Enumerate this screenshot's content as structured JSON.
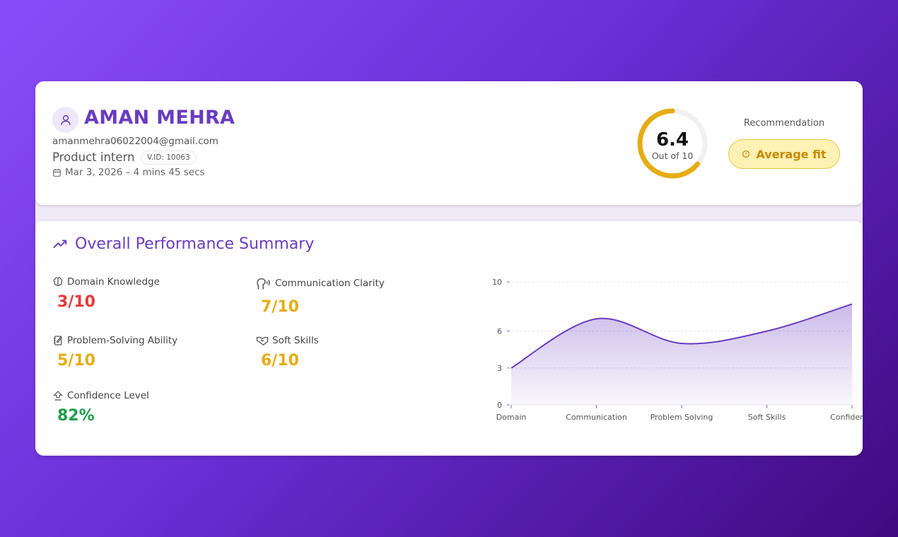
{
  "candidate": {
    "name": "AMAN MEHRA",
    "email": "amanmehra06022004@gmail.com",
    "role": "Product intern",
    "vid": "V.ID: 10063",
    "date": "Mar 3, 2026 – 4 mins 45 secs"
  },
  "score": {
    "value": "6.4",
    "subtitle": "Out of 10",
    "progress": 0.64,
    "color": "#e6ac12"
  },
  "recommendation": {
    "label": "Recommendation",
    "value": "Average fit",
    "icon": "alert-circle-icon"
  },
  "summary": {
    "title": "Overall Performance Summary",
    "icon": "trending-up-icon",
    "metrics": [
      {
        "label": "Domain Knowledge",
        "value": "3/10",
        "color": "#e5393b",
        "icon": "brain-icon"
      },
      {
        "label": "Communication Clarity",
        "value": "7/10",
        "color": "#e6ac12",
        "icon": "speaking-head-icon"
      },
      {
        "label": "Problem-Solving Ability",
        "value": "5/10",
        "color": "#e6ac12",
        "icon": "notebook-pen-icon"
      },
      {
        "label": "Soft Skills",
        "value": "6/10",
        "color": "#e6ac12",
        "icon": "handshake-icon"
      },
      {
        "label": "Confidence Level",
        "value": "82%",
        "color": "#1e9e48",
        "icon": "arrow-up-icon"
      }
    ]
  },
  "chart_data": {
    "type": "area",
    "categories": [
      "Domain",
      "Communication",
      "Problem Solving",
      "Soft Skills",
      "Confidence"
    ],
    "values": [
      3,
      7,
      5,
      6,
      8.2
    ],
    "yticks": [
      0,
      3,
      6,
      10
    ],
    "ylim": [
      0,
      10
    ],
    "grid": true,
    "color": "#6a3cc0"
  }
}
